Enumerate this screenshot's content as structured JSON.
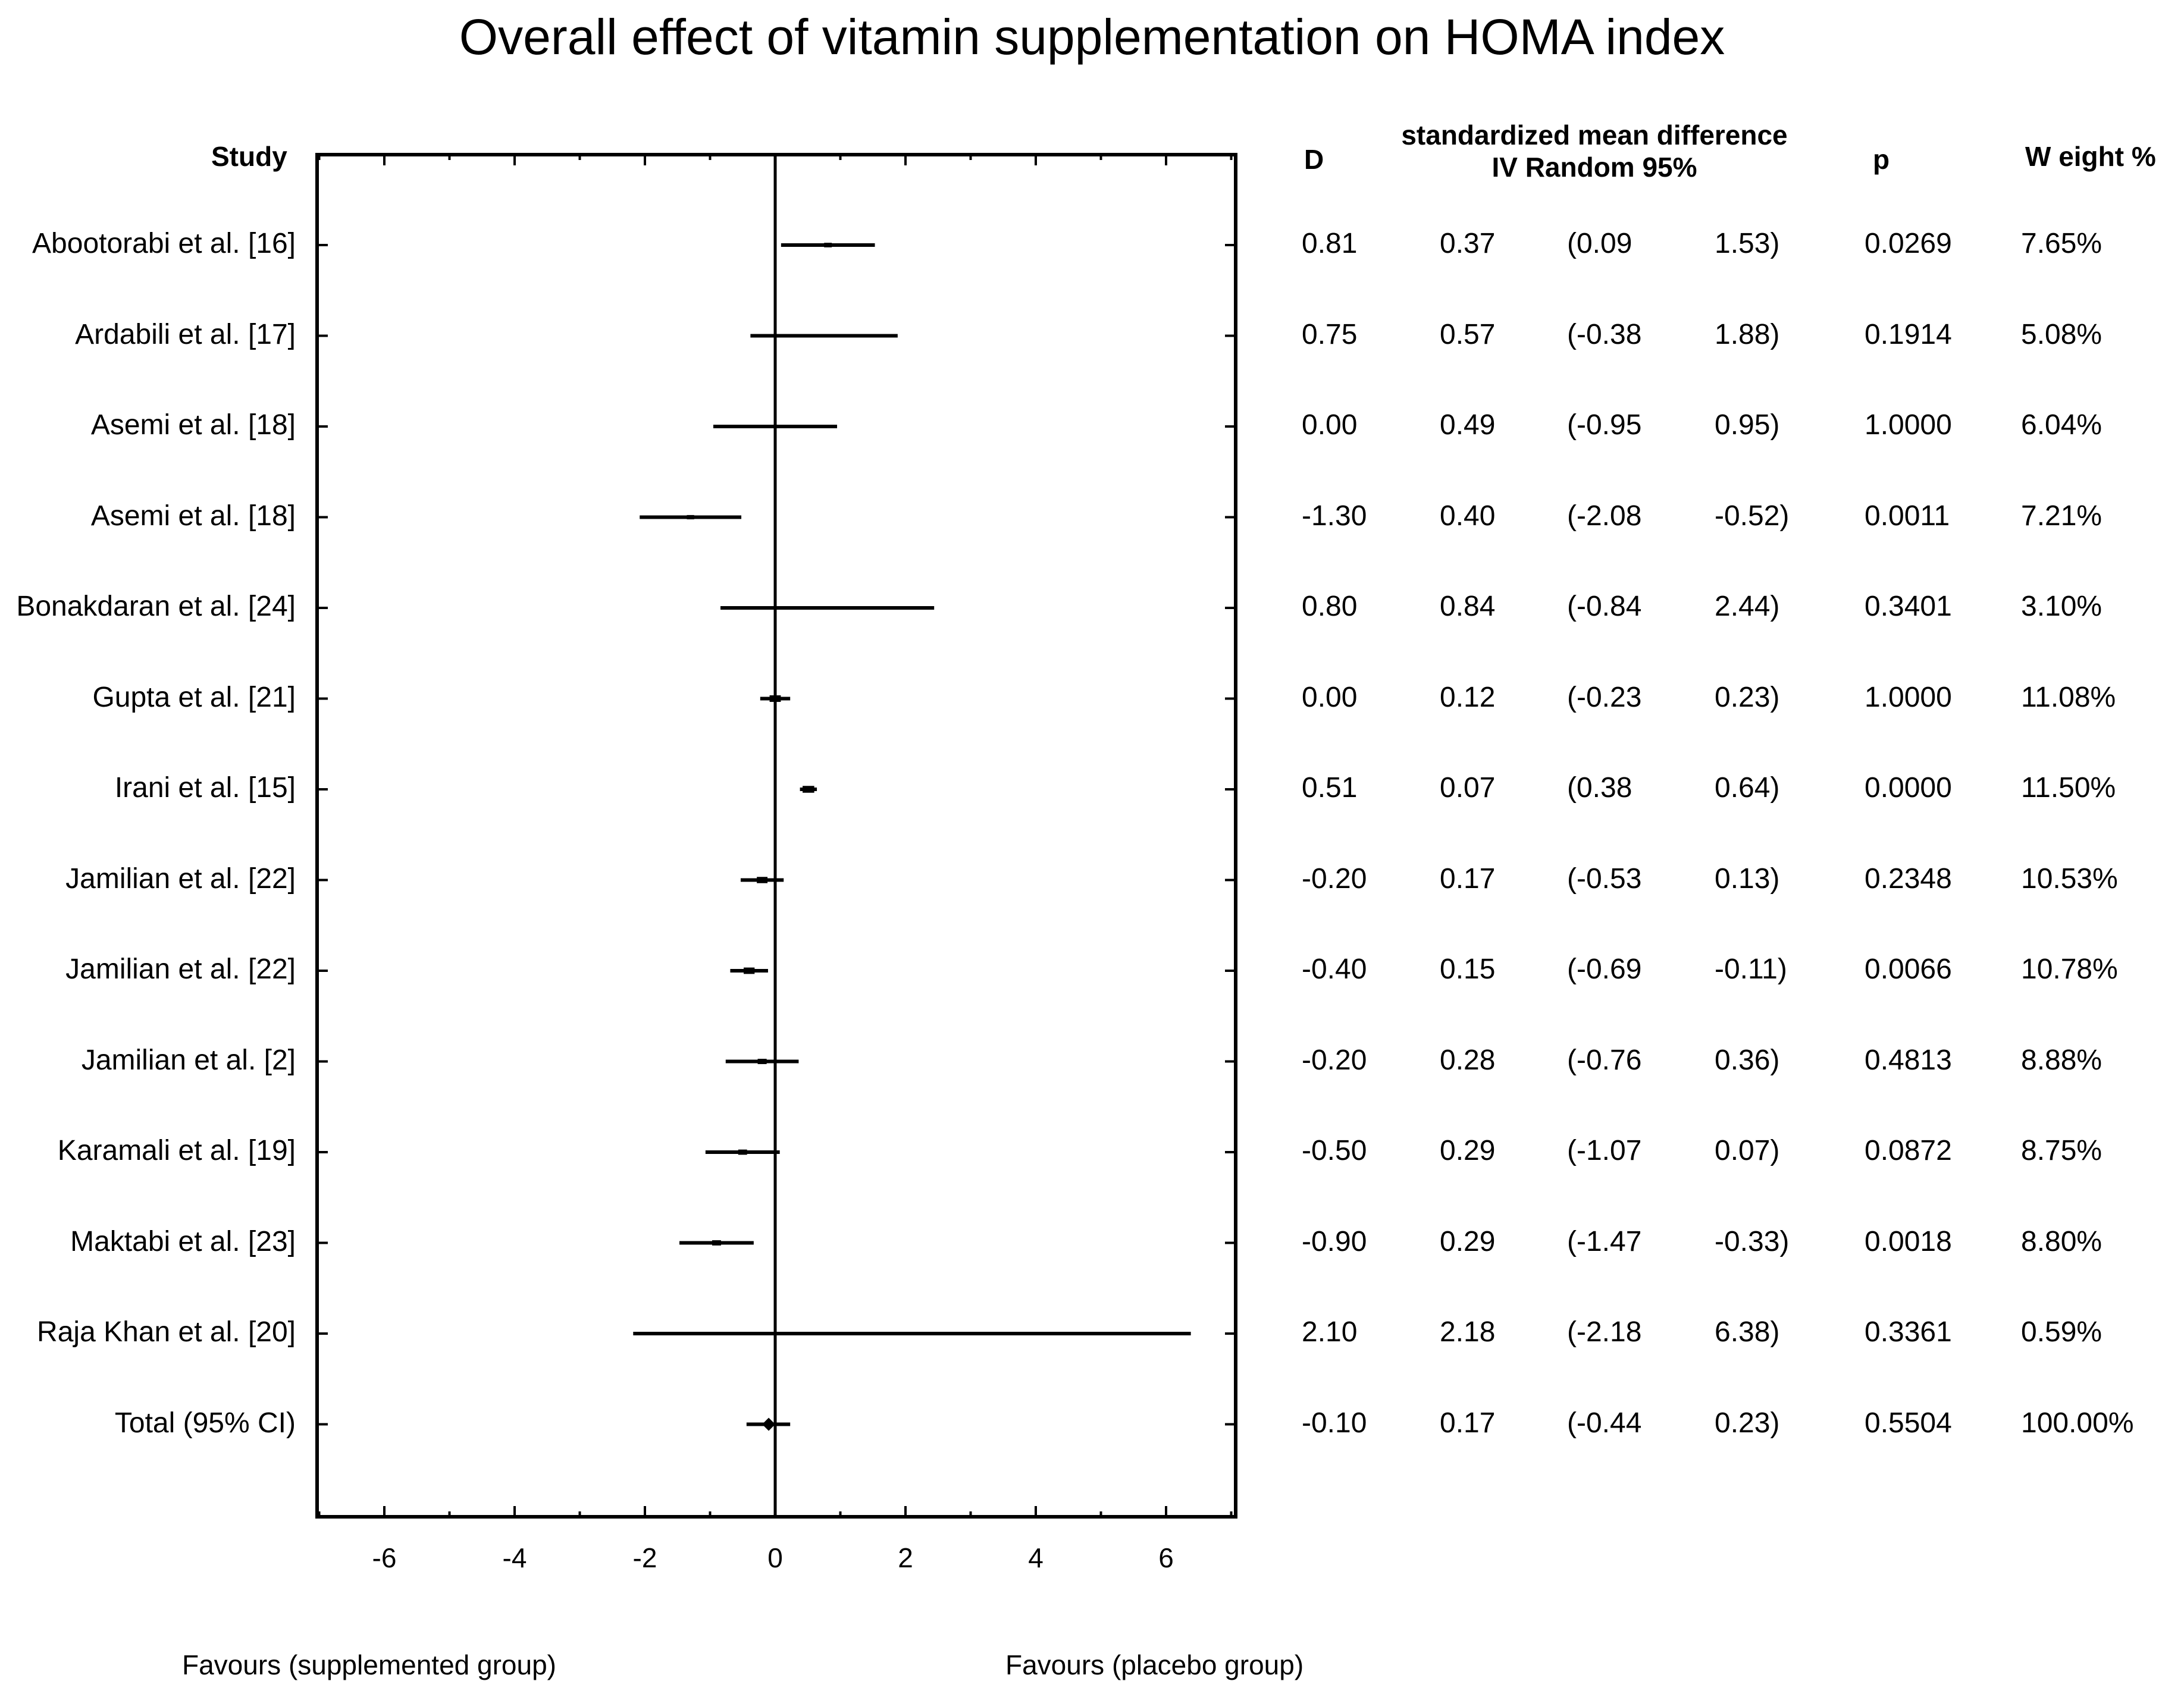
{
  "title": "Overall effect of vitamin supplementation on HOMA index",
  "headers": {
    "study": "Study",
    "d": "D",
    "smd_line1": "standardized mean difference",
    "smd_line2": "IV Random 95%",
    "p": "p",
    "weight": "W eight %"
  },
  "footer": {
    "left": "Favours (supplemented group)",
    "right": "Favours (placebo group)"
  },
  "chart_data": {
    "type": "forest",
    "title": "Overall effect of vitamin supplementation on HOMA index",
    "xlim": [
      -7,
      7
    ],
    "xticks": [
      -6,
      -4,
      -2,
      0,
      2,
      4,
      6
    ],
    "tick_labels": [
      "-6",
      "-4",
      "-2",
      "0",
      "2",
      "4",
      "6"
    ],
    "studies": [
      {
        "name": "Abootorabi et al. [16]",
        "d": 0.81,
        "se": 0.37,
        "ci_low": 0.09,
        "ci_high": 1.53,
        "p": 0.0269,
        "weight": 7.65,
        "d_text": "0.81",
        "se_text": "0.37",
        "ci_low_text": "(0.09",
        "ci_high_text": "1.53)",
        "p_text": "0.0269",
        "weight_text": "7.65%"
      },
      {
        "name": "Ardabili et al. [17]",
        "d": 0.75,
        "se": 0.57,
        "ci_low": -0.38,
        "ci_high": 1.88,
        "p": 0.1914,
        "weight": 5.08,
        "d_text": "0.75",
        "se_text": "0.57",
        "ci_low_text": "(-0.38",
        "ci_high_text": "1.88)",
        "p_text": "0.1914",
        "weight_text": "5.08%"
      },
      {
        "name": "Asemi et al. [18]",
        "d": 0.0,
        "se": 0.49,
        "ci_low": -0.95,
        "ci_high": 0.95,
        "p": 1.0,
        "weight": 6.04,
        "d_text": "0.00",
        "se_text": "0.49",
        "ci_low_text": "(-0.95",
        "ci_high_text": "0.95)",
        "p_text": "1.0000",
        "weight_text": "6.04%"
      },
      {
        "name": "Asemi et al. [18]",
        "d": -1.3,
        "se": 0.4,
        "ci_low": -2.08,
        "ci_high": -0.52,
        "p": 0.0011,
        "weight": 7.21,
        "d_text": "-1.30",
        "se_text": "0.40",
        "ci_low_text": "(-2.08",
        "ci_high_text": "-0.52)",
        "p_text": "0.0011",
        "weight_text": "7.21%"
      },
      {
        "name": "Bonakdaran et al. [24]",
        "d": 0.8,
        "se": 0.84,
        "ci_low": -0.84,
        "ci_high": 2.44,
        "p": 0.3401,
        "weight": 3.1,
        "d_text": "0.80",
        "se_text": "0.84",
        "ci_low_text": "(-0.84",
        "ci_high_text": "2.44)",
        "p_text": "0.3401",
        "weight_text": "3.10%"
      },
      {
        "name": "Gupta et al. [21]",
        "d": 0.0,
        "se": 0.12,
        "ci_low": -0.23,
        "ci_high": 0.23,
        "p": 1.0,
        "weight": 11.08,
        "d_text": "0.00",
        "se_text": "0.12",
        "ci_low_text": "(-0.23",
        "ci_high_text": "0.23)",
        "p_text": "1.0000",
        "weight_text": "11.08%"
      },
      {
        "name": "Irani et al. [15]",
        "d": 0.51,
        "se": 0.07,
        "ci_low": 0.38,
        "ci_high": 0.64,
        "p": 0.0,
        "weight": 11.5,
        "d_text": "0.51",
        "se_text": "0.07",
        "ci_low_text": "(0.38",
        "ci_high_text": "0.64)",
        "p_text": "0.0000",
        "weight_text": "11.50%"
      },
      {
        "name": "Jamilian et al. [22]",
        "d": -0.2,
        "se": 0.17,
        "ci_low": -0.53,
        "ci_high": 0.13,
        "p": 0.2348,
        "weight": 10.53,
        "d_text": "-0.20",
        "se_text": "0.17",
        "ci_low_text": "(-0.53",
        "ci_high_text": "0.13)",
        "p_text": "0.2348",
        "weight_text": "10.53%"
      },
      {
        "name": "Jamilian et al. [22]",
        "d": -0.4,
        "se": 0.15,
        "ci_low": -0.69,
        "ci_high": -0.11,
        "p": 0.0066,
        "weight": 10.78,
        "d_text": "-0.40",
        "se_text": "0.15",
        "ci_low_text": "(-0.69",
        "ci_high_text": "-0.11)",
        "p_text": "0.0066",
        "weight_text": "10.78%"
      },
      {
        "name": "Jamilian et al. [2]",
        "d": -0.2,
        "se": 0.28,
        "ci_low": -0.76,
        "ci_high": 0.36,
        "p": 0.4813,
        "weight": 8.88,
        "d_text": "-0.20",
        "se_text": "0.28",
        "ci_low_text": "(-0.76",
        "ci_high_text": "0.36)",
        "p_text": "0.4813",
        "weight_text": "8.88%"
      },
      {
        "name": "Karamali et al. [19]",
        "d": -0.5,
        "se": 0.29,
        "ci_low": -1.07,
        "ci_high": 0.07,
        "p": 0.0872,
        "weight": 8.75,
        "d_text": "-0.50",
        "se_text": "0.29",
        "ci_low_text": "(-1.07",
        "ci_high_text": "0.07)",
        "p_text": "0.0872",
        "weight_text": "8.75%"
      },
      {
        "name": "Maktabi et al. [23]",
        "d": -0.9,
        "se": 0.29,
        "ci_low": -1.47,
        "ci_high": -0.33,
        "p": 0.0018,
        "weight": 8.8,
        "d_text": "-0.90",
        "se_text": "0.29",
        "ci_low_text": "(-1.47",
        "ci_high_text": "-0.33)",
        "p_text": "0.0018",
        "weight_text": "8.80%"
      },
      {
        "name": "Raja Khan et al. [20]",
        "d": 2.1,
        "se": 2.18,
        "ci_low": -2.18,
        "ci_high": 6.38,
        "p": 0.3361,
        "weight": 0.59,
        "d_text": "2.10",
        "se_text": "2.18",
        "ci_low_text": "(-2.18",
        "ci_high_text": "6.38)",
        "p_text": "0.3361",
        "weight_text": "0.59%"
      }
    ],
    "total": {
      "name": "Total (95% CI)",
      "d": -0.1,
      "se": 0.17,
      "ci_low": -0.44,
      "ci_high": 0.23,
      "p": 0.5504,
      "weight": 100.0,
      "d_text": "-0.10",
      "se_text": "0.17",
      "ci_low_text": "(-0.44",
      "ci_high_text": "0.23)",
      "p_text": "0.5504",
      "weight_text": "100.00%"
    }
  }
}
